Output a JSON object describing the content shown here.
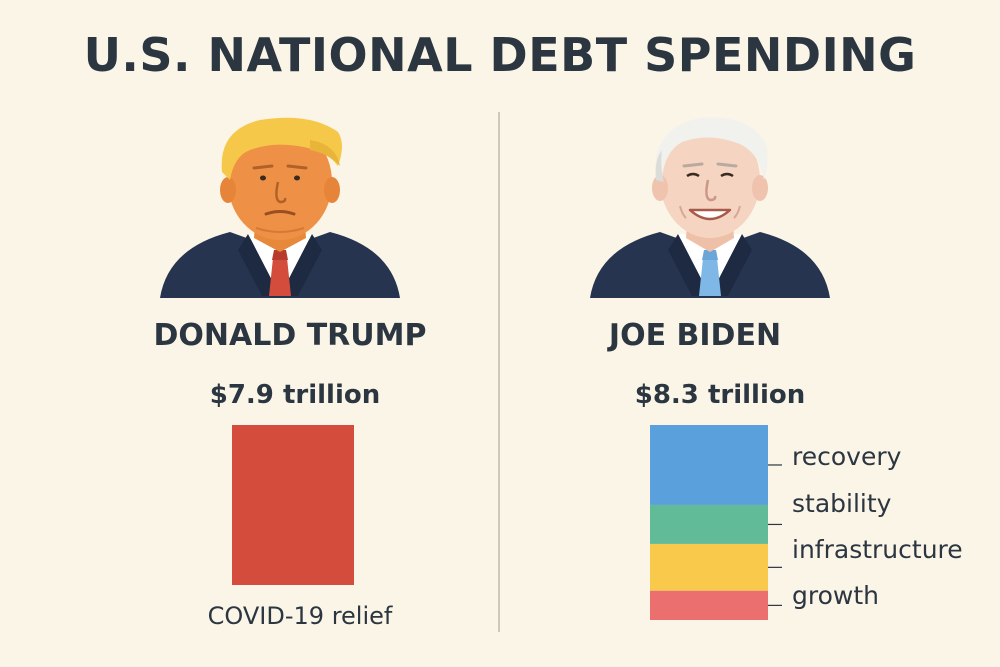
{
  "title": "U.S. NATIONAL DEBT SPENDING",
  "colors": {
    "background": "#fbf5e8",
    "text": "#2b3640",
    "trump_bar": "#d44d3c",
    "recovery": "#5aa0dc",
    "stability": "#62bb98",
    "infrastructure": "#f8c94a",
    "growth": "#ec6f70"
  },
  "left": {
    "name": "DONALD TRUMP",
    "amount": "$7.9 trillion",
    "caption": "COVID-19 relief"
  },
  "right": {
    "name": "JOE BIDEN",
    "amount": "$8.3 trillion",
    "legend": [
      "recovery",
      "stability",
      "infrastructure",
      "growth"
    ]
  },
  "chart_data": [
    {
      "type": "bar",
      "title": "DONALD TRUMP",
      "categories": [
        "COVID-19 relief"
      ],
      "values": [
        7.9
      ],
      "unit": "trillion USD",
      "colors": [
        "#d44d3c"
      ]
    },
    {
      "type": "bar",
      "stacked": true,
      "title": "JOE BIDEN",
      "total": 8.3,
      "unit": "trillion USD",
      "series": [
        {
          "name": "recovery",
          "share": 0.41,
          "color": "#5aa0dc"
        },
        {
          "name": "stability",
          "share": 0.2,
          "color": "#62bb98"
        },
        {
          "name": "infrastructure",
          "share": 0.24,
          "color": "#f8c94a"
        },
        {
          "name": "growth",
          "share": 0.15,
          "color": "#ec6f70"
        }
      ]
    }
  ]
}
